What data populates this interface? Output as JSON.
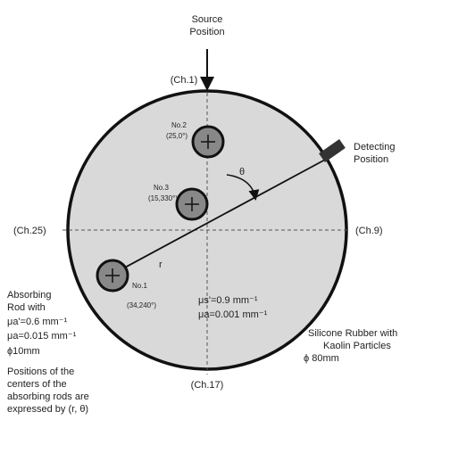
{
  "source": [
    "Source",
    "Position"
  ],
  "channels": {
    "top": "(Ch.1)",
    "left": "(Ch.25)",
    "right": "(Ch.9)",
    "bottom": "(Ch.17)"
  },
  "detector": [
    "Detecting",
    "Position"
  ],
  "rods": [
    {
      "name": "No.2",
      "pos": "(25,0°)"
    },
    {
      "name": "No.3",
      "pos": "(15,330°)"
    },
    {
      "name": "No.1",
      "pos": "(34,240°)"
    }
  ],
  "theta": "θ",
  "r": "r",
  "rod_props": [
    "Absorbing",
    "Rod with",
    "μa'=0.6 mm⁻¹",
    "μa=0.015 mm⁻¹",
    "ϕ10mm"
  ],
  "medium_props": [
    "μs'=0.9 mm⁻¹",
    "μa=0.001 mm⁻¹"
  ],
  "medium": [
    "Silicone Rubber with",
    "Kaolin Particles",
    "ϕ 80mm"
  ],
  "note": [
    "Positions of the",
    "centers of the",
    "absorbing rods are",
    "expressed by (r, θ)"
  ]
}
